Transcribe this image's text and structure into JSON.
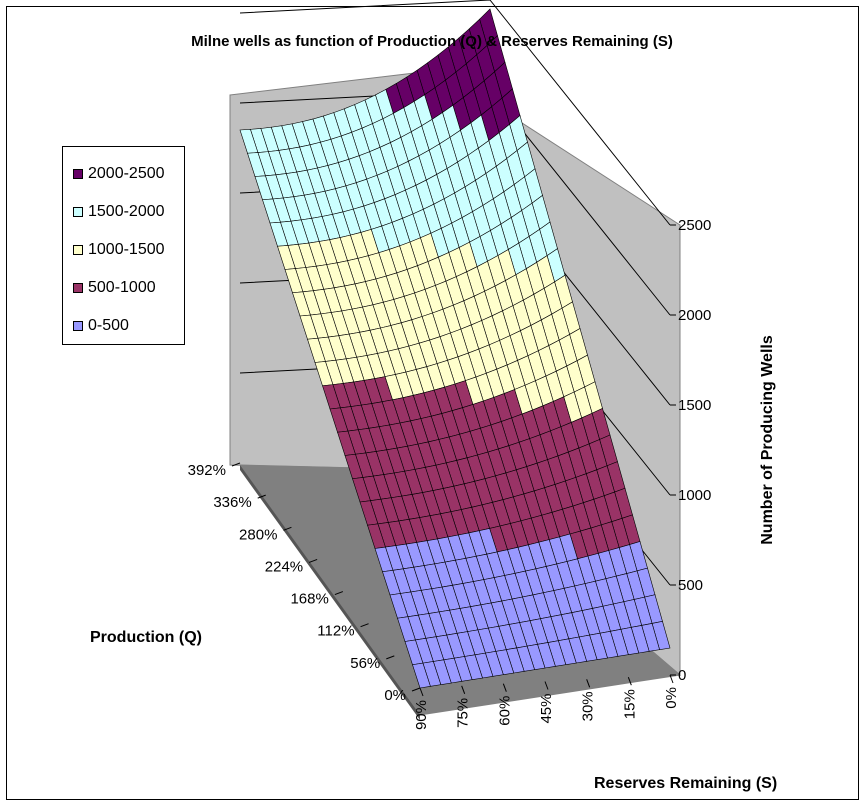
{
  "chart_data": {
    "type": "surface",
    "title": "Milne wells as function of Production (Q) & Reserves Remaining (S)",
    "xlabel": "Reserves Remaining (S)",
    "ylabel": "Production (Q)",
    "zlabel": "Number of Producing Wells",
    "x_ticks": [
      "90%",
      "75%",
      "60%",
      "45%",
      "30%",
      "15%",
      "0%"
    ],
    "y_ticks": [
      "0%",
      "56%",
      "112%",
      "168%",
      "224%",
      "280%",
      "336%",
      "392%"
    ],
    "z_ticks": [
      "0",
      "500",
      "1000",
      "1500",
      "2000",
      "2500"
    ],
    "zlim": [
      0,
      2500
    ],
    "corners": {
      "S90_Q0": 0,
      "S0_Q0": 150,
      "S90_Q392": 1850,
      "S0_Q392": 2450
    },
    "series": [
      {
        "name": "0-500",
        "color": "#9999ff"
      },
      {
        "name": "500-1000",
        "color": "#993366"
      },
      {
        "name": "1000-1500",
        "color": "#ffffcc"
      },
      {
        "name": "1500-2000",
        "color": "#ccffff"
      },
      {
        "name": "2000-2500",
        "color": "#660066"
      }
    ],
    "legend_position": "left"
  }
}
